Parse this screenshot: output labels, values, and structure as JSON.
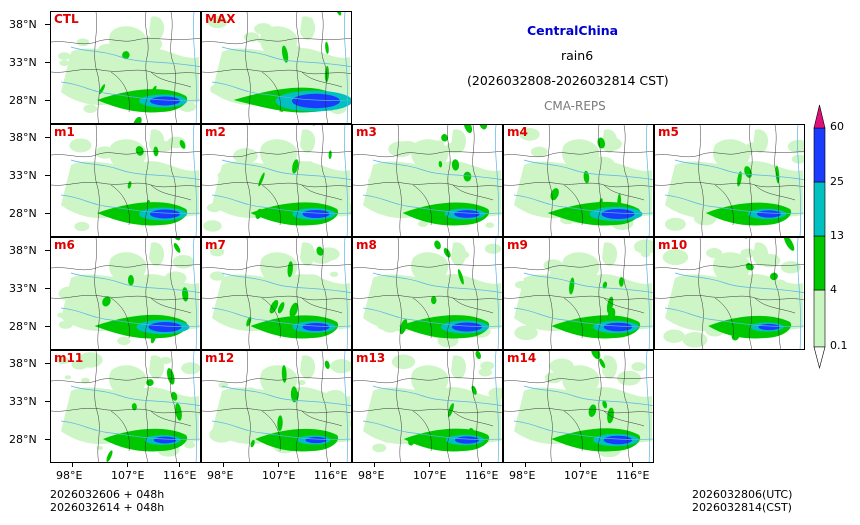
{
  "header": {
    "region": "CentralChina",
    "variable": "rain6",
    "period": "(2026032808-2026032814 CST)",
    "model": "CMA-REPS"
  },
  "panels": [
    {
      "label": "CTL",
      "intensity": 1.0
    },
    {
      "label": "MAX",
      "intensity": 1.6
    },
    {
      "label": "m1",
      "intensity": 1.0
    },
    {
      "label": "m2",
      "intensity": 0.9
    },
    {
      "label": "m3",
      "intensity": 0.85
    },
    {
      "label": "m4",
      "intensity": 1.1
    },
    {
      "label": "m5",
      "intensity": 0.8
    },
    {
      "label": "m6",
      "intensity": 1.1
    },
    {
      "label": "m7",
      "intensity": 0.9
    },
    {
      "label": "m8",
      "intensity": 1.0
    },
    {
      "label": "m9",
      "intensity": 0.95
    },
    {
      "label": "m10",
      "intensity": 0.7
    },
    {
      "label": "m11",
      "intensity": 0.75
    },
    {
      "label": "m12",
      "intensity": 0.7
    },
    {
      "label": "m13",
      "intensity": 0.8
    },
    {
      "label": "m14",
      "intensity": 0.95
    }
  ],
  "lat_ticks": [
    "38°N",
    "33°N",
    "28°N"
  ],
  "lon_ticks": [
    "98°E",
    "107°E",
    "116°E"
  ],
  "colorbar": {
    "levels": [
      "0.1",
      "4",
      "13",
      "25",
      "60"
    ],
    "colors": [
      "#c8f5c0",
      "#00c800",
      "#00c0c0",
      "#1a3cff",
      "#e0107a"
    ]
  },
  "footer": {
    "init_left_1": "2026032606  +  048h",
    "init_left_2": "2026032614  +  048h",
    "valid_right_1": "2026032806(UTC)",
    "valid_right_2": "2026032814(CST)"
  },
  "colors": {
    "label": "#e00000",
    "title": "#0000d0",
    "subtitle": "#7a7a7a",
    "river": "#5ab4e6",
    "border": "#000000"
  }
}
